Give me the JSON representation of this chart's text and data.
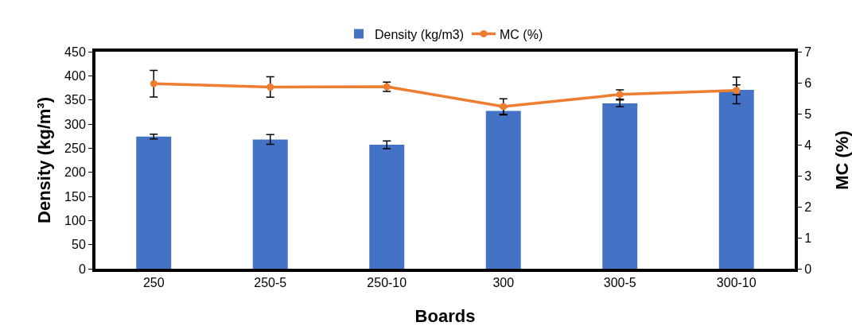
{
  "chart_data": {
    "type": "bar",
    "xlabel": "Boards",
    "ylabel": "Density (kg/m³)",
    "y2label": "MC (%)",
    "categories": [
      "250",
      "250-5",
      "250-10",
      "300",
      "300-5",
      "300-10"
    ],
    "series": [
      {
        "name": "Density (kg/m3)",
        "color": "#4472c4",
        "values": [
          274,
          268,
          257,
          327,
          343,
          371
        ],
        "errors": [
          5,
          10,
          8,
          8,
          7,
          10
        ]
      },
      {
        "name": "MC (%)",
        "type": "line",
        "axis": "y2",
        "color": "#ed7d31",
        "marker": "circle",
        "values": [
          5.97,
          5.86,
          5.87,
          5.23,
          5.62,
          5.75
        ],
        "errors": [
          0.43,
          0.33,
          0.15,
          0.25,
          0.15,
          0.43
        ]
      }
    ],
    "ylim": [
      0,
      450
    ],
    "yticks": [
      0,
      50,
      100,
      150,
      200,
      250,
      300,
      350,
      400,
      450
    ],
    "y2lim": [
      0,
      7
    ],
    "y2ticks": [
      0,
      1,
      2,
      3,
      4,
      5,
      6,
      7
    ],
    "grid": false,
    "legend": "top"
  }
}
